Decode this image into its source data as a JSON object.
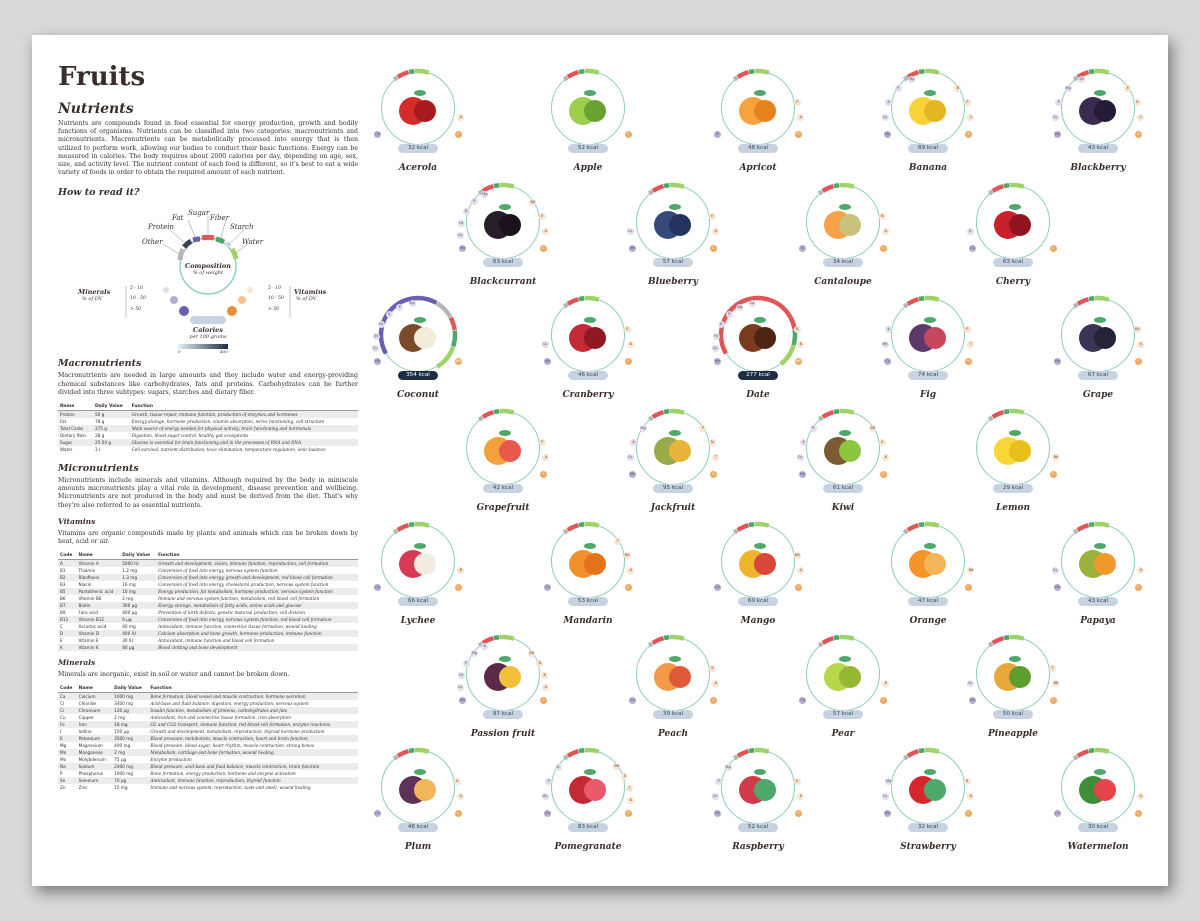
{
  "title": "Fruits",
  "nutrients": {
    "heading": "Nutrients",
    "text": "Nutrients are compounds found in food essential for energy production, growth and bodily functions of organisms. Nutrients can be classified into two categories: macronutrients and micronutrients. Macronutrients can be metabolically processed into energy that is then utilized to perform work, allowing our bodies to conduct their basic functions. Energy can be measured in calories. The body requires about 2000 calories per day, depending on age, sex, size, and activity level. The nutrient content of each food is different, so it's best to eat a wide variety of foods in order to obtain the required amount of each nutrient."
  },
  "howto": {
    "heading": "How to read it?",
    "labels": {
      "other": "Other",
      "protein": "Protein",
      "fat": "Fat",
      "sugar": "Sugar",
      "fiber": "Fiber",
      "starch": "Starch",
      "water": "Water"
    },
    "composition": "Composition",
    "composition_sub": "% of weight",
    "minerals": "Minerals",
    "minerals_sub": "% of DV",
    "vitamins": "Vitamins",
    "vitamins_sub": "% of DV",
    "ranges": [
      "5 - 10",
      "10 - 50",
      "> 50"
    ],
    "calories": "Calories",
    "calories_sub": "per 100 grams",
    "scale_min": "0",
    "scale_max": "400"
  },
  "macro": {
    "heading": "Macronutrients",
    "text": "Macronutrients are needed in large amounts and they include water and energy-providing chemical substances like carbohydrates, fats and proteins. Carbohydrates can be further divided into three subtypes: sugars, starches and dietary fiber.",
    "cols": [
      "Name",
      "Daily Value",
      "Function"
    ],
    "rows": [
      [
        "Protein",
        "50 g",
        "Growth, tissue repair, immune function, production of enzymes and hormones"
      ],
      [
        "Fat",
        "78 g",
        "Energy storage, hormone production, vitamin absorption, nerve functioning, cell structure"
      ],
      [
        "Total Carbs",
        "275 g",
        "Main source of energy needed for physical activity, brain functioning and hormonals"
      ],
      [
        "Dietary fiber",
        "28 g",
        "Digestion, blood sugar control, healthy gut ecosystems"
      ],
      [
        "Sugar",
        "25-50 g",
        "Glucose is essential for brain functioning and in the processes of RNA and DNA"
      ],
      [
        "Water",
        "3 l",
        "Cell survival, nutrient distribution, toxic elimination, temperature regulation, ionic balance"
      ]
    ]
  },
  "micro": {
    "heading": "Micronutrients",
    "text": "Micronutrients include minerals and vitamins. Although required by the body in miniscule amounts micronutrients play a vital role in development, disease prevention and wellbeing. Micronutrients are not produced in the body and must be derived from the diet. That's why they're also referred to as essential nutrients."
  },
  "vitamins": {
    "heading": "Vitamins",
    "text": "Vitamins are organic compounds made by plants and animals which can be broken down by heat, acid or air.",
    "cols": [
      "Code",
      "Name",
      "Daily Value",
      "Function"
    ],
    "rows": [
      [
        "A",
        "Vitamin A",
        "5000 IU",
        "Growth and development, vision, immune function, reproduction, cell formation"
      ],
      [
        "B1",
        "Thiamin",
        "1.2 mg",
        "Conversion of food into energy, nervous system function"
      ],
      [
        "B2",
        "Riboflavin",
        "1.3 mg",
        "Conversion of food into energy, growth and development, red blood cell formation"
      ],
      [
        "B3",
        "Niacin",
        "16 mg",
        "Conversion of food into energy, cholesterol production, nervous system function"
      ],
      [
        "B5",
        "Pantothenic acid",
        "10 mg",
        "Energy production, fat metabolism, hormone production, nervous system function"
      ],
      [
        "B6",
        "Vitamin B6",
        "2 mg",
        "Immune and nervous system function, metabolism, red blood cell formation"
      ],
      [
        "B7",
        "Biotin",
        "300 µg",
        "Energy storage, metabolism of fatty acids, amino acids and glucose"
      ],
      [
        "B9",
        "Folic acid",
        "400 µg",
        "Prevention of birth defects, genetic material production, cell division"
      ],
      [
        "B12",
        "Vitamin B12",
        "6 µg",
        "Conversion of food into energy, nervous system function, red blood cell formation"
      ],
      [
        "C",
        "Ascorbic acid",
        "60 mg",
        "Antioxidant, immune function, connective tissue formation, wound healing"
      ],
      [
        "D",
        "Vitamin D",
        "400 IU",
        "Calcium absorption and bone growth, hormone production, immune function"
      ],
      [
        "E",
        "Vitamin E",
        "30 IU",
        "Antioxidant, immune function and blood cell formation"
      ],
      [
        "K",
        "Vitamin K",
        "80 µg",
        "Blood clotting and bone development"
      ]
    ]
  },
  "minerals": {
    "heading": "Minerals",
    "text": "Minerals are inorganic, exist in soil or water and cannot be broken down.",
    "cols": [
      "Code",
      "Name",
      "Daily Value",
      "Function"
    ],
    "rows": [
      [
        "Ca",
        "Calcium",
        "1000 mg",
        "Bone formation, blood vessel and muscle contraction, hormone secretion"
      ],
      [
        "Cl",
        "Chloride",
        "3400 mg",
        "Acid-base and fluid balance, digestion, energy production, nervous system"
      ],
      [
        "Cr",
        "Chromium",
        "120 µg",
        "Insulin function, metabolism of proteins, carbohydrates and fats"
      ],
      [
        "Cu",
        "Copper",
        "2 mg",
        "Antioxidant, iron and connective tissue formation, iron absorption"
      ],
      [
        "Fe",
        "Iron",
        "18 mg",
        "O2 and CO2 transport, immune function, red blood cell formation, enzyme reactions"
      ],
      [
        "I",
        "Iodine",
        "150 µg",
        "Growth and development, metabolism, reproduction, thyroid hormone production"
      ],
      [
        "K",
        "Potassium",
        "3500 mg",
        "Blood pressure, metabolism, muscle contraction, heart and brain function"
      ],
      [
        "Mg",
        "Magnesium",
        "400 mg",
        "Blood pressure, blood sugar, heart rhythm, muscle contraction, strong bones"
      ],
      [
        "Mn",
        "Manganese",
        "2 mg",
        "Metabolism, cartilage and bone formation, wound healing"
      ],
      [
        "Mo",
        "Molybdenum",
        "75 µg",
        "Enzyme production"
      ],
      [
        "Na",
        "Sodium",
        "2400 mg",
        "Blood pressure, acid-base and fluid balance, muscle contraction, brain function"
      ],
      [
        "P",
        "Phosphorus",
        "1000 mg",
        "Bone formation, energy production, hormone and enzyme activation"
      ],
      [
        "Se",
        "Selenium",
        "70 µg",
        "Antioxidant, immune function, reproduction, thyroid function"
      ],
      [
        "Zn",
        "Zinc",
        "15 mg",
        "Immune and nervous system, reproduction, taste and smell, wound healing"
      ]
    ]
  },
  "fruits": [
    {
      "name": "Acerola",
      "kcal": "32 kcal",
      "minerals": [
        "Ca"
      ],
      "vitamins": [
        "A",
        "C"
      ]
    },
    {
      "name": "Apple",
      "kcal": "52 kcal",
      "minerals": [],
      "vitamins": [
        "C"
      ]
    },
    {
      "name": "Apricot",
      "kcal": "48 kcal",
      "minerals": [
        "K"
      ],
      "vitamins": [
        "P",
        "A",
        "C"
      ]
    },
    {
      "name": "Banana",
      "kcal": "89 kcal",
      "minerals": [
        "Mg",
        "P",
        "K",
        "Cu",
        "Mn"
      ],
      "vitamins": [
        "B",
        "P",
        "C",
        "A"
      ]
    },
    {
      "name": "Blackberry",
      "kcal": "43 kcal",
      "minerals": [
        "Zn",
        "Mg",
        "P",
        "Cu",
        "Mn"
      ],
      "vitamins": [
        "E",
        "K",
        "C",
        "A"
      ]
    },
    {
      "name": "Blackcurrant",
      "kcal": "63 kcal",
      "minerals": [
        "Mg",
        "P",
        "K",
        "Fe",
        "Cu",
        "Mn"
      ],
      "vitamins": [
        "B6",
        "E",
        "A",
        "C"
      ]
    },
    {
      "name": "Blueberry",
      "kcal": "57 kcal",
      "minerals": [
        "Cu",
        "Mn"
      ],
      "vitamins": [
        "E",
        "K",
        "C"
      ]
    },
    {
      "name": "Cantaloupe",
      "kcal": "34 kcal",
      "minerals": [
        "K"
      ],
      "vitamins": [
        "N",
        "A",
        "C"
      ]
    },
    {
      "name": "Cherry",
      "kcal": "63 kcal",
      "minerals": [
        "K",
        "Cu"
      ],
      "vitamins": [
        "C"
      ]
    },
    {
      "name": "Coconut",
      "kcal": "354 kcal",
      "minerals": [
        "Mg",
        "P",
        "K",
        "Fe",
        "Se",
        "Cu",
        "Mn"
      ],
      "vitamins": [
        "B6"
      ]
    },
    {
      "name": "Cranberry",
      "kcal": "46 kcal",
      "minerals": [
        "Cu",
        "Mn"
      ],
      "vitamins": [
        "E",
        "K",
        "C"
      ]
    },
    {
      "name": "Date",
      "kcal": "277 kcal",
      "minerals": [
        "Ca",
        "Mg",
        "P",
        "K",
        "Fe",
        "Cu",
        "Mn"
      ],
      "vitamins": [
        "B",
        "K",
        "B6"
      ]
    },
    {
      "name": "Fig",
      "kcal": "74 kcal",
      "minerals": [
        "K",
        "Mn",
        "Cu"
      ],
      "vitamins": [
        "P",
        "T",
        "K"
      ]
    },
    {
      "name": "Grape",
      "kcal": "67 kcal",
      "minerals": [
        "Mn"
      ],
      "vitamins": [
        "B6",
        "K",
        "C"
      ]
    },
    {
      "name": "Grapefruit",
      "kcal": "42 kcal",
      "minerals": [],
      "vitamins": [
        "P",
        "A",
        "C"
      ]
    },
    {
      "name": "Jackfruit",
      "kcal": "95 kcal",
      "minerals": [
        "Mg",
        "K",
        "Cu",
        "Mn"
      ],
      "vitamins": [
        "P",
        "N",
        "T",
        "C"
      ]
    },
    {
      "name": "Kiwi",
      "kcal": "61 kcal",
      "minerals": [
        "P",
        "K",
        "Cu",
        "Mn"
      ],
      "vitamins": [
        "B6",
        "E",
        "K",
        "C"
      ]
    },
    {
      "name": "Lemon",
      "kcal": "29 kcal",
      "minerals": [],
      "vitamins": [
        "B6",
        "C"
      ]
    },
    {
      "name": "Lychee",
      "kcal": "66 kcal",
      "minerals": [
        "Cu"
      ],
      "vitamins": [
        "B",
        "C"
      ]
    },
    {
      "name": "Mandarin",
      "kcal": "53 kcal",
      "minerals": [
        "Cu"
      ],
      "vitamins": [
        "T",
        "B6",
        "A",
        "C"
      ]
    },
    {
      "name": "Mango",
      "kcal": "60 kcal",
      "minerals": [
        "Cu"
      ],
      "vitamins": [
        "B6",
        "A",
        "C"
      ]
    },
    {
      "name": "Orange",
      "kcal": "47 kcal",
      "minerals": [],
      "vitamins": [
        "B6",
        "C"
      ]
    },
    {
      "name": "Papaya",
      "kcal": "43 kcal",
      "minerals": [
        "Cu",
        "Mn"
      ],
      "vitamins": [
        "A",
        "C"
      ]
    },
    {
      "name": "Passion fruit",
      "kcal": "97 kcal",
      "minerals": [
        "K",
        "Mg",
        "P",
        "Fe",
        "Cu",
        "Mn"
      ],
      "vitamins": [
        "B6",
        "N",
        "K",
        "A",
        "C"
      ]
    },
    {
      "name": "Peach",
      "kcal": "39 kcal",
      "minerals": [
        "Cu"
      ],
      "vitamins": [
        "X",
        "A",
        "C"
      ]
    },
    {
      "name": "Pear",
      "kcal": "57 kcal",
      "minerals": [
        "Cu"
      ],
      "vitamins": [
        "K",
        "C"
      ]
    },
    {
      "name": "Pineapple",
      "kcal": "50 kcal",
      "minerals": [
        "Cu",
        "Mn"
      ],
      "vitamins": [
        "T",
        "B6",
        "C"
      ]
    },
    {
      "name": "Plum",
      "kcal": "46 kcal",
      "minerals": [
        "Cu"
      ],
      "vitamins": [
        "K",
        "A",
        "C"
      ]
    },
    {
      "name": "Pomegranate",
      "kcal": "83 kcal",
      "minerals": [
        "K",
        "P",
        "Mn",
        "Cu"
      ],
      "vitamins": [
        "B6",
        "E",
        "T",
        "K",
        "C"
      ]
    },
    {
      "name": "Raspberry",
      "kcal": "52 kcal",
      "minerals": [
        "Mg",
        "P",
        "Cu",
        "Mn"
      ],
      "vitamins": [
        "E",
        "K",
        "C"
      ]
    },
    {
      "name": "Strawberry",
      "kcal": "32 kcal",
      "minerals": [
        "Mg",
        "Cu",
        "Mn"
      ],
      "vitamins": [
        "B",
        "K",
        "C"
      ]
    },
    {
      "name": "Watermelon",
      "kcal": "30 kcal",
      "minerals": [
        "Cu"
      ],
      "vitamins": [
        "A",
        "C"
      ]
    }
  ],
  "colors": {
    "ring": "#8bcfb5",
    "water": "#9fd36a",
    "sugar": "#e05555",
    "fiber": "#4fa86b",
    "fat": "#6b5fb0",
    "protein": "#3d3d55",
    "other": "#b6b6b6",
    "kcal_low": "#c7d3e0",
    "kcal_high": "#1f2c45"
  }
}
